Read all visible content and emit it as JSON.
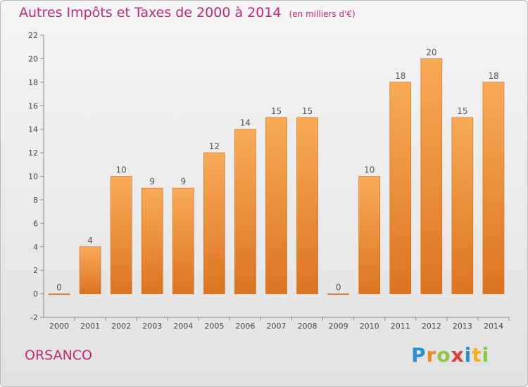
{
  "header": {
    "title": "Autres Impôts et Taxes de 2000 à 2014",
    "unit": "(en milliers d'€)"
  },
  "footer": {
    "commune": "ORSANCO",
    "logo_text": "Proxiti"
  },
  "colors": {
    "accent": "#c5296b",
    "bar_light": "#f8ab57",
    "bar_dark": "#dd7420",
    "bar_border": "#c8651b"
  },
  "chart_data": {
    "type": "bar",
    "categories": [
      "2000",
      "2001",
      "2002",
      "2003",
      "2004",
      "2005",
      "2006",
      "2007",
      "2008",
      "2009",
      "2010",
      "2011",
      "2012",
      "2013",
      "2014"
    ],
    "values": [
      0,
      4,
      10,
      9,
      9,
      12,
      14,
      15,
      15,
      0,
      10,
      18,
      20,
      15,
      18
    ],
    "data_labels": [
      "0",
      "4",
      "10",
      "9",
      "9",
      "12",
      "14",
      "15",
      "15",
      "0",
      "10",
      "18",
      "20",
      "15",
      "18"
    ],
    "ylim": [
      -2,
      22
    ],
    "yticks": [
      -2,
      0,
      2,
      4,
      6,
      8,
      10,
      12,
      14,
      16,
      18,
      20,
      22
    ],
    "grid": false,
    "title": "Autres Impôts et Taxes de 2000 à 2014",
    "xlabel": "",
    "ylabel": ""
  }
}
